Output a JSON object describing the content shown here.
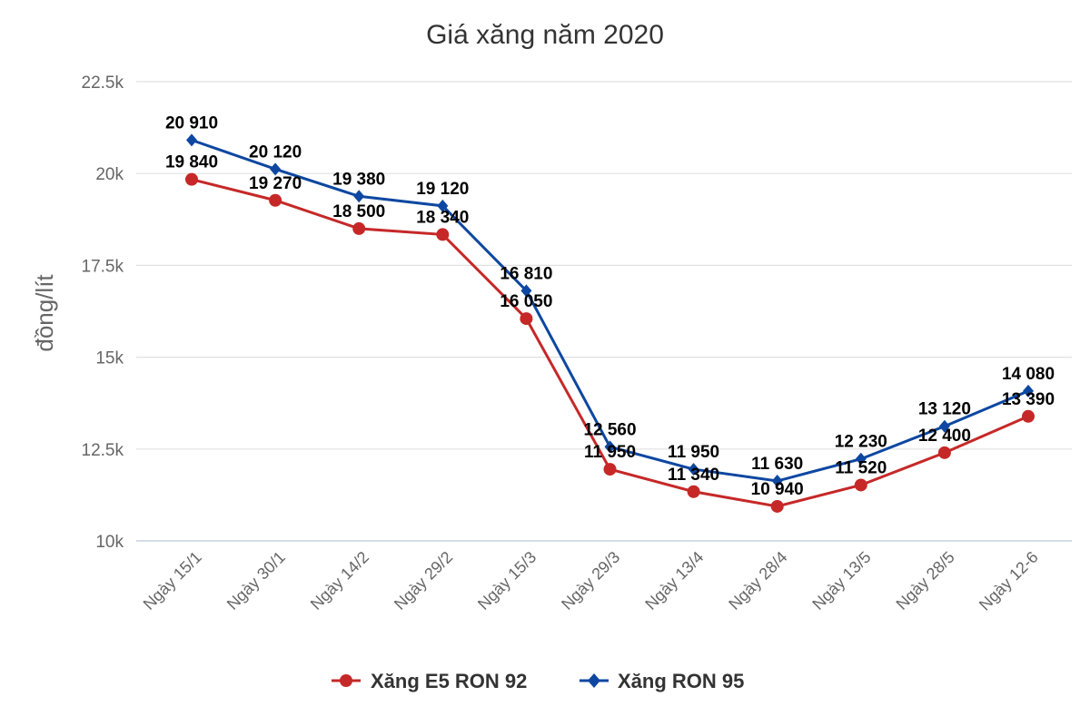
{
  "chart_data": {
    "type": "line",
    "title": "Giá xăng năm 2020",
    "xlabel": "",
    "ylabel": "đồng/lít",
    "ylim": [
      10000,
      22500
    ],
    "yticks": [
      {
        "value": 10000,
        "label": "10k"
      },
      {
        "value": 12500,
        "label": "12.5k"
      },
      {
        "value": 15000,
        "label": "15k"
      },
      {
        "value": 17500,
        "label": "17.5k"
      },
      {
        "value": 20000,
        "label": "20k"
      },
      {
        "value": 22500,
        "label": "22.5k"
      }
    ],
    "grid": true,
    "legend_position": "bottom",
    "categories": [
      "Ngày 15/1",
      "Ngày 30/1",
      "Ngày 14/2",
      "Ngày 29/2",
      "Ngày 15/3",
      "Ngày 29/3",
      "Ngày 13/4",
      "Ngày 28/4",
      "Ngày 13/5",
      "Ngày 28/5",
      "Ngày 12-6"
    ],
    "series": [
      {
        "name": "Xăng E5 RON 92",
        "color": "#c62828",
        "marker": "circle",
        "values": [
          19840,
          19270,
          18500,
          18340,
          16050,
          11950,
          11340,
          10940,
          11520,
          12400,
          13390
        ],
        "labels": [
          "19 840",
          "19 270",
          "18 500",
          "18 340",
          "16 050",
          "11 950",
          "11 340",
          "10 940",
          "11 520",
          "12 400",
          "13 390"
        ]
      },
      {
        "name": "Xăng RON 95",
        "color": "#0d47a1",
        "marker": "diamond",
        "values": [
          20910,
          20120,
          19380,
          19120,
          16810,
          12560,
          11950,
          11630,
          12230,
          13120,
          14080
        ],
        "labels": [
          "20 910",
          "20 120",
          "19 380",
          "19 120",
          "16 810",
          "12 560",
          "11 950",
          "11 630",
          "12 230",
          "13 120",
          "14 080"
        ]
      }
    ]
  }
}
